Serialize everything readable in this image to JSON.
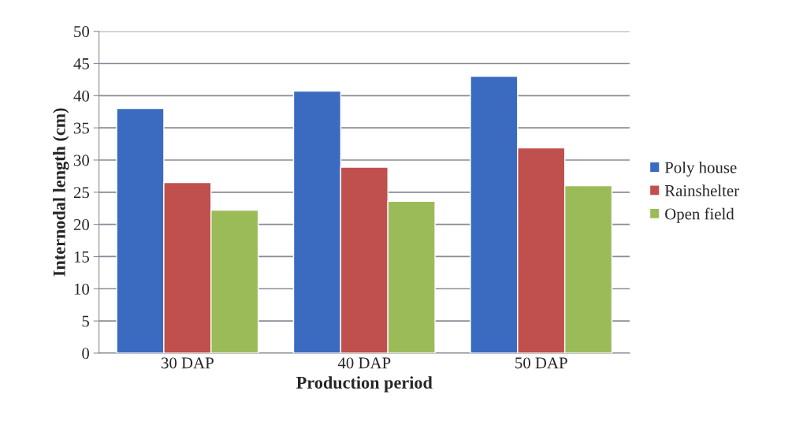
{
  "chart_data": {
    "type": "bar",
    "xlabel": "Production period",
    "ylabel": "Internodal length (cm)",
    "categories": [
      "30 DAP",
      "40 DAP",
      "50 DAP"
    ],
    "series": [
      {
        "name": "Poly house",
        "color": "#3a6bc1",
        "values": [
          38.0,
          40.7,
          43.0
        ]
      },
      {
        "name": "Rainshelter",
        "color": "#c0504d",
        "values": [
          26.5,
          28.9,
          31.9
        ]
      },
      {
        "name": "Open field",
        "color": "#9bbb59",
        "values": [
          22.2,
          23.6,
          26.0
        ]
      }
    ],
    "ylim": [
      0,
      50
    ],
    "yticks": [
      0,
      5,
      10,
      15,
      20,
      25,
      30,
      35,
      40,
      45,
      50
    ],
    "grid": "y",
    "legend": "right"
  }
}
